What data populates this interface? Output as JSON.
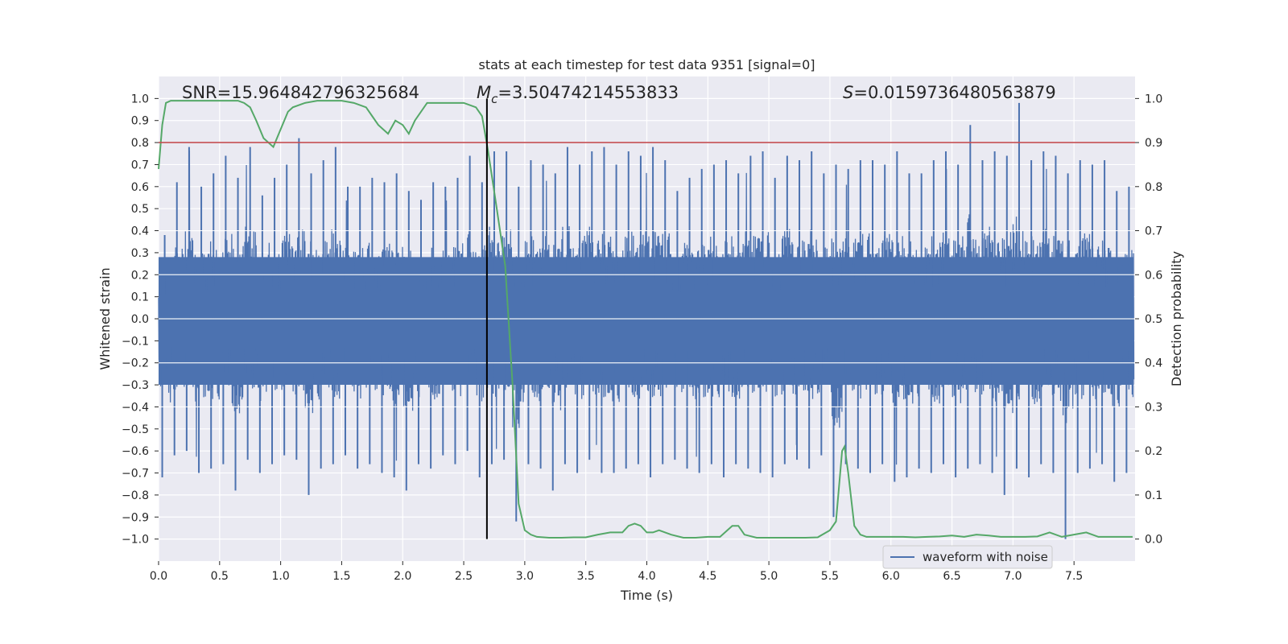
{
  "chart_data": {
    "type": "line",
    "title": "stats at each timestep for test data 9351 [signal=0]",
    "xlabel": "Time (s)",
    "ylabel": "Whitened strain",
    "y2label": "Detection probability",
    "xlim": [
      0.0,
      8.0
    ],
    "ylim": [
      -1.1,
      1.1
    ],
    "y2lim": [
      -0.05,
      1.05
    ],
    "x_ticks": [
      0.0,
      0.5,
      1.0,
      1.5,
      2.0,
      2.5,
      3.0,
      3.5,
      4.0,
      4.5,
      5.0,
      5.5,
      6.0,
      6.5,
      7.0,
      7.5
    ],
    "y_ticks": [
      1.0,
      0.9,
      0.8,
      0.7,
      0.6,
      0.5,
      0.4,
      0.3,
      0.2,
      0.1,
      0.0,
      -0.1,
      -0.2,
      -0.3,
      -0.4,
      -0.5,
      -0.6,
      -0.7,
      -0.8,
      -0.9,
      -1.0
    ],
    "y2_ticks": [
      1.0,
      0.9,
      0.8,
      0.7,
      0.6,
      0.5,
      0.4,
      0.3,
      0.2,
      0.1,
      0.0
    ],
    "grid": true,
    "legend_position": "lower-right",
    "annotations": {
      "snr": "SNR=15.964842796325684",
      "mc_prefix": "M",
      "mc_sub": "c",
      "mc_value": "=3.50474214553833",
      "s_prefix": "S",
      "s_value": "=0.0159736480563879"
    },
    "vline_x": 2.69,
    "threshold_y2": 0.9,
    "series": [
      {
        "name": "waveform with noise",
        "axis": "left",
        "color": "#4c72b0",
        "envelope_upper": [
          0.38,
          0.62,
          0.78,
          0.6,
          0.66,
          0.74,
          0.64,
          0.78,
          0.56,
          0.64,
          0.7,
          0.82,
          0.66,
          0.72,
          0.78,
          0.6,
          0.6,
          0.64,
          0.62,
          0.66,
          0.58,
          0.54,
          0.62,
          0.6,
          0.64,
          0.74,
          0.62,
          0.76,
          0.76,
          0.6,
          0.72,
          0.7,
          0.66,
          0.78,
          0.7,
          0.76,
          0.78,
          0.7,
          0.76,
          0.74,
          0.78,
          0.72,
          0.58,
          0.64,
          0.68,
          0.7,
          0.72,
          0.66,
          0.74,
          0.76,
          0.64,
          0.74,
          0.72,
          0.76,
          0.66,
          0.7,
          0.68,
          0.72,
          0.72,
          0.7,
          0.76,
          0.66,
          0.66,
          0.72,
          0.76,
          0.7,
          0.88,
          0.72,
          0.76,
          0.74,
          0.98,
          0.72,
          0.76,
          0.74,
          0.66,
          0.72,
          0.7,
          0.72,
          0.58,
          0.6
        ],
        "envelope_lower": [
          -0.72,
          -0.62,
          -0.6,
          -0.7,
          -0.68,
          -0.66,
          -0.78,
          -0.64,
          -0.7,
          -0.66,
          -0.62,
          -0.64,
          -0.8,
          -0.68,
          -0.66,
          -0.62,
          -0.68,
          -0.66,
          -0.7,
          -0.72,
          -0.78,
          -0.66,
          -0.68,
          -0.62,
          -0.66,
          -0.6,
          -0.72,
          -0.66,
          -0.64,
          -0.92,
          -0.66,
          -0.68,
          -0.78,
          -0.66,
          -0.7,
          -0.64,
          -0.7,
          -0.7,
          -0.68,
          -0.66,
          -0.72,
          -0.66,
          -0.64,
          -0.68,
          -0.7,
          -0.66,
          -0.72,
          -0.66,
          -0.68,
          -0.7,
          -0.72,
          -0.66,
          -0.64,
          -0.68,
          -0.62,
          -0.9,
          -0.66,
          -0.68,
          -0.7,
          -0.66,
          -0.74,
          -0.72,
          -0.68,
          -0.7,
          -0.66,
          -0.72,
          -0.68,
          -0.66,
          -0.7,
          -0.8,
          -0.68,
          -0.72,
          -0.66,
          -0.7,
          -1.0,
          -0.7,
          -0.68,
          -0.66,
          -0.74,
          -0.7
        ]
      },
      {
        "name": "",
        "axis": "right",
        "color": "#55a868",
        "x": [
          0.0,
          0.03,
          0.06,
          0.1,
          0.2,
          0.3,
          0.4,
          0.5,
          0.6,
          0.65,
          0.7,
          0.75,
          0.8,
          0.86,
          0.94,
          1.0,
          1.06,
          1.1,
          1.2,
          1.3,
          1.4,
          1.5,
          1.6,
          1.7,
          1.75,
          1.8,
          1.88,
          1.94,
          2.0,
          2.05,
          2.1,
          2.2,
          2.25,
          2.3,
          2.4,
          2.5,
          2.6,
          2.65,
          2.7,
          2.76,
          2.84,
          2.9,
          2.95,
          3.0,
          3.05,
          3.1,
          3.2,
          3.3,
          3.4,
          3.5,
          3.6,
          3.7,
          3.8,
          3.85,
          3.9,
          3.95,
          4.0,
          4.05,
          4.1,
          4.2,
          4.3,
          4.4,
          4.5,
          4.6,
          4.7,
          4.75,
          4.8,
          4.9,
          5.0,
          5.1,
          5.2,
          5.3,
          5.4,
          5.5,
          5.55,
          5.6,
          5.62,
          5.65,
          5.7,
          5.75,
          5.8,
          5.9,
          6.0,
          6.1,
          6.2,
          6.3,
          6.4,
          6.5,
          6.6,
          6.7,
          6.8,
          6.9,
          7.0,
          7.1,
          7.2,
          7.3,
          7.4,
          7.5,
          7.6,
          7.7,
          7.8,
          7.9,
          7.98
        ],
        "y": [
          0.84,
          0.94,
          0.99,
          0.995,
          0.995,
          0.995,
          0.995,
          0.995,
          0.995,
          0.995,
          0.99,
          0.98,
          0.95,
          0.91,
          0.89,
          0.93,
          0.97,
          0.98,
          0.99,
          0.995,
          0.995,
          0.995,
          0.99,
          0.98,
          0.96,
          0.94,
          0.92,
          0.95,
          0.94,
          0.92,
          0.95,
          0.99,
          0.99,
          0.99,
          0.99,
          0.99,
          0.98,
          0.96,
          0.88,
          0.77,
          0.62,
          0.35,
          0.08,
          0.02,
          0.01,
          0.005,
          0.003,
          0.003,
          0.004,
          0.004,
          0.01,
          0.015,
          0.015,
          0.03,
          0.035,
          0.03,
          0.015,
          0.015,
          0.02,
          0.01,
          0.003,
          0.003,
          0.005,
          0.005,
          0.03,
          0.03,
          0.01,
          0.003,
          0.003,
          0.003,
          0.003,
          0.003,
          0.004,
          0.02,
          0.04,
          0.2,
          0.21,
          0.15,
          0.03,
          0.01,
          0.005,
          0.005,
          0.005,
          0.005,
          0.004,
          0.005,
          0.006,
          0.008,
          0.005,
          0.01,
          0.008,
          0.005,
          0.005,
          0.005,
          0.006,
          0.015,
          0.005,
          0.01,
          0.015,
          0.005,
          0.005,
          0.005,
          0.005
        ]
      }
    ]
  }
}
